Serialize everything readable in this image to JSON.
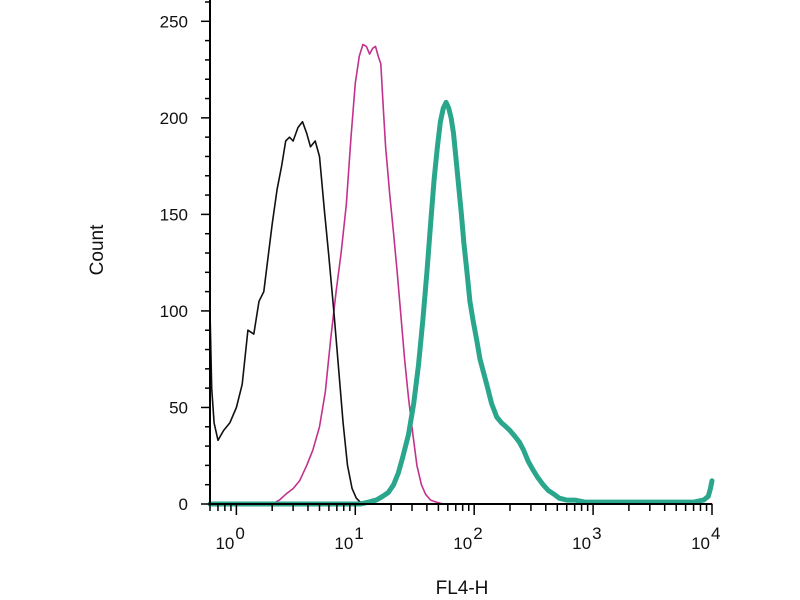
{
  "chart_data": {
    "type": "line",
    "title": "",
    "xlabel": "FL4-H",
    "ylabel": "Count",
    "x_scale": "log",
    "xlim": [
      0.6,
      10000
    ],
    "ylim": [
      0,
      260
    ],
    "grid": false,
    "legend": "none",
    "x_ticks": [
      {
        "value": 1,
        "base": "10",
        "exp": "0"
      },
      {
        "value": 10,
        "base": "10",
        "exp": "1"
      },
      {
        "value": 100,
        "base": "10",
        "exp": "2"
      },
      {
        "value": 1000,
        "base": "10",
        "exp": "3"
      },
      {
        "value": 10000,
        "base": "10",
        "exp": "4"
      }
    ],
    "y_ticks": [
      {
        "value": 0,
        "label": "0"
      },
      {
        "value": 50,
        "label": "50"
      },
      {
        "value": 100,
        "label": "100"
      },
      {
        "value": 150,
        "label": "150"
      },
      {
        "value": 200,
        "label": "200"
      },
      {
        "value": 250,
        "label": "250"
      }
    ],
    "series": [
      {
        "color": "#111111",
        "stroke": "thin",
        "x": [
          0.6,
          0.62,
          0.65,
          0.7,
          0.78,
          0.88,
          1.0,
          1.12,
          1.25,
          1.4,
          1.55,
          1.7,
          1.85,
          2.0,
          2.2,
          2.4,
          2.6,
          2.8,
          3.0,
          3.3,
          3.6,
          3.9,
          4.2,
          4.6,
          5.0,
          5.5,
          6.0,
          6.6,
          7.2,
          7.9,
          8.6,
          9.4,
          10.2,
          11.0,
          12.0
        ],
        "y": [
          100,
          60,
          42,
          33,
          38,
          42,
          50,
          62,
          90,
          88,
          105,
          110,
          128,
          145,
          163,
          175,
          188,
          190,
          188,
          195,
          198,
          192,
          185,
          188,
          180,
          152,
          128,
          100,
          72,
          42,
          20,
          8,
          3,
          1,
          0
        ]
      },
      {
        "color": "#c2318e",
        "stroke": "thin",
        "x": [
          2.0,
          2.3,
          2.6,
          3.0,
          3.4,
          3.9,
          4.4,
          5.0,
          5.6,
          6.2,
          6.9,
          7.6,
          8.4,
          9.2,
          10.0,
          10.8,
          11.6,
          12.4,
          13.2,
          14.0,
          14.8,
          15.6,
          16.4,
          17.2,
          18.0,
          19.5,
          21.0,
          22.5,
          24.0,
          26.0,
          28.0,
          30.5,
          33.0,
          36.0,
          39.0,
          43.0,
          48.0,
          55.0,
          70.0,
          200.0,
          1000.0,
          10000.0
        ],
        "y": [
          0,
          2,
          5,
          8,
          12,
          20,
          28,
          40,
          58,
          85,
          110,
          130,
          155,
          190,
          218,
          232,
          238,
          237,
          233,
          236,
          237,
          232,
          228,
          205,
          185,
          160,
          140,
          120,
          100,
          75,
          55,
          36,
          20,
          10,
          5,
          2,
          1,
          0,
          0,
          0,
          0,
          0
        ]
      },
      {
        "color": "#2aa68c",
        "stroke": "thick",
        "x": [
          0.6,
          1.0,
          5.0,
          11.0,
          13.0,
          15.0,
          17.0,
          19.0,
          21.0,
          23.0,
          25.0,
          28.0,
          31.0,
          34.0,
          37.0,
          40.0,
          43.0,
          46.0,
          49.0,
          52.0,
          55.0,
          58.0,
          61.0,
          64.0,
          67.0,
          70.0,
          74.0,
          78.0,
          82.0,
          87.0,
          92.0,
          98.0,
          105.0,
          112.0,
          120.0,
          130.0,
          140.0,
          155.0,
          170.0,
          185.0,
          200.0,
          220.0,
          240.0,
          260.0,
          285.0,
          310.0,
          340.0,
          380.0,
          420.0,
          470.0,
          520.0,
          600.0,
          700.0,
          850.0,
          1000.0,
          1300.0,
          1700.0,
          2300.0,
          3000.0,
          4000.0,
          5500.0,
          7000.0,
          8500.0,
          9300.0,
          9700.0,
          10000.0
        ],
        "y": [
          0,
          0,
          0,
          0,
          1,
          2,
          4,
          6,
          10,
          16,
          24,
          36,
          52,
          72,
          95,
          120,
          145,
          168,
          185,
          198,
          205,
          208,
          205,
          200,
          192,
          180,
          165,
          150,
          135,
          120,
          105,
          95,
          85,
          75,
          68,
          60,
          52,
          45,
          42,
          40,
          38,
          35,
          32,
          28,
          22,
          18,
          14,
          10,
          7,
          5,
          3,
          2,
          2,
          1,
          1,
          1,
          1,
          1,
          1,
          1,
          1,
          1,
          2,
          4,
          8,
          12
        ]
      }
    ]
  }
}
